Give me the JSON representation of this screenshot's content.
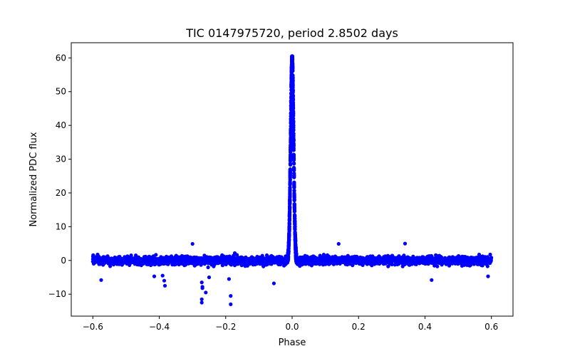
{
  "chart_data": {
    "type": "scatter",
    "title": "TIC 0147975720, period 2.8502 days",
    "xlabel": "Phase",
    "ylabel": "Normalized PDC flux",
    "xlim": [
      -0.665,
      0.665
    ],
    "ylim": [
      -16.5,
      64.5
    ],
    "xticks": [
      -0.6,
      -0.4,
      -0.2,
      0.0,
      0.2,
      0.4,
      0.6
    ],
    "xtick_labels": [
      "−0.6",
      "−0.4",
      "−0.2",
      "0.0",
      "0.2",
      "0.4",
      "0.6"
    ],
    "yticks": [
      -10,
      0,
      10,
      20,
      30,
      40,
      50,
      60
    ],
    "ytick_labels": [
      "−10",
      "0",
      "10",
      "20",
      "30",
      "40",
      "50",
      "60"
    ],
    "grid": false,
    "marker_color": "#0000ff",
    "series": [
      {
        "name": "flux",
        "description_of_distribution": "dense band of points between phase -0.6 and 0.6 around flux 0 (about -3 to +3), with a sharp peak at phase 0 reaching ~60",
        "baseline_range": {
          "x": [
            -0.6,
            0.6
          ],
          "y_center": 0.0,
          "y_halfwidth": 2.8
        },
        "peak": {
          "x_center": 0.0,
          "x_halfwidth": 0.013,
          "y_max": 60.5
        },
        "notable_points": [
          {
            "x": -0.3,
            "y": 4.9
          },
          {
            "x": 0.14,
            "y": 4.9
          },
          {
            "x": 0.34,
            "y": 5.0
          },
          {
            "x": -0.575,
            "y": -5.8
          },
          {
            "x": -0.39,
            "y": -4.5
          },
          {
            "x": -0.385,
            "y": -6.0
          },
          {
            "x": -0.383,
            "y": -7.5
          },
          {
            "x": -0.415,
            "y": -4.7
          },
          {
            "x": -0.272,
            "y": -6.5
          },
          {
            "x": -0.27,
            "y": -7.8
          },
          {
            "x": -0.27,
            "y": -8.2
          },
          {
            "x": -0.272,
            "y": -11.5
          },
          {
            "x": -0.272,
            "y": -12.5
          },
          {
            "x": -0.26,
            "y": -9.5
          },
          {
            "x": -0.25,
            "y": -5.0
          },
          {
            "x": -0.19,
            "y": -5.5
          },
          {
            "x": -0.185,
            "y": -10.5
          },
          {
            "x": -0.185,
            "y": -13.0
          },
          {
            "x": -0.055,
            "y": -6.8
          },
          {
            "x": 0.42,
            "y": -5.8
          },
          {
            "x": 0.59,
            "y": -4.7
          }
        ]
      }
    ]
  }
}
